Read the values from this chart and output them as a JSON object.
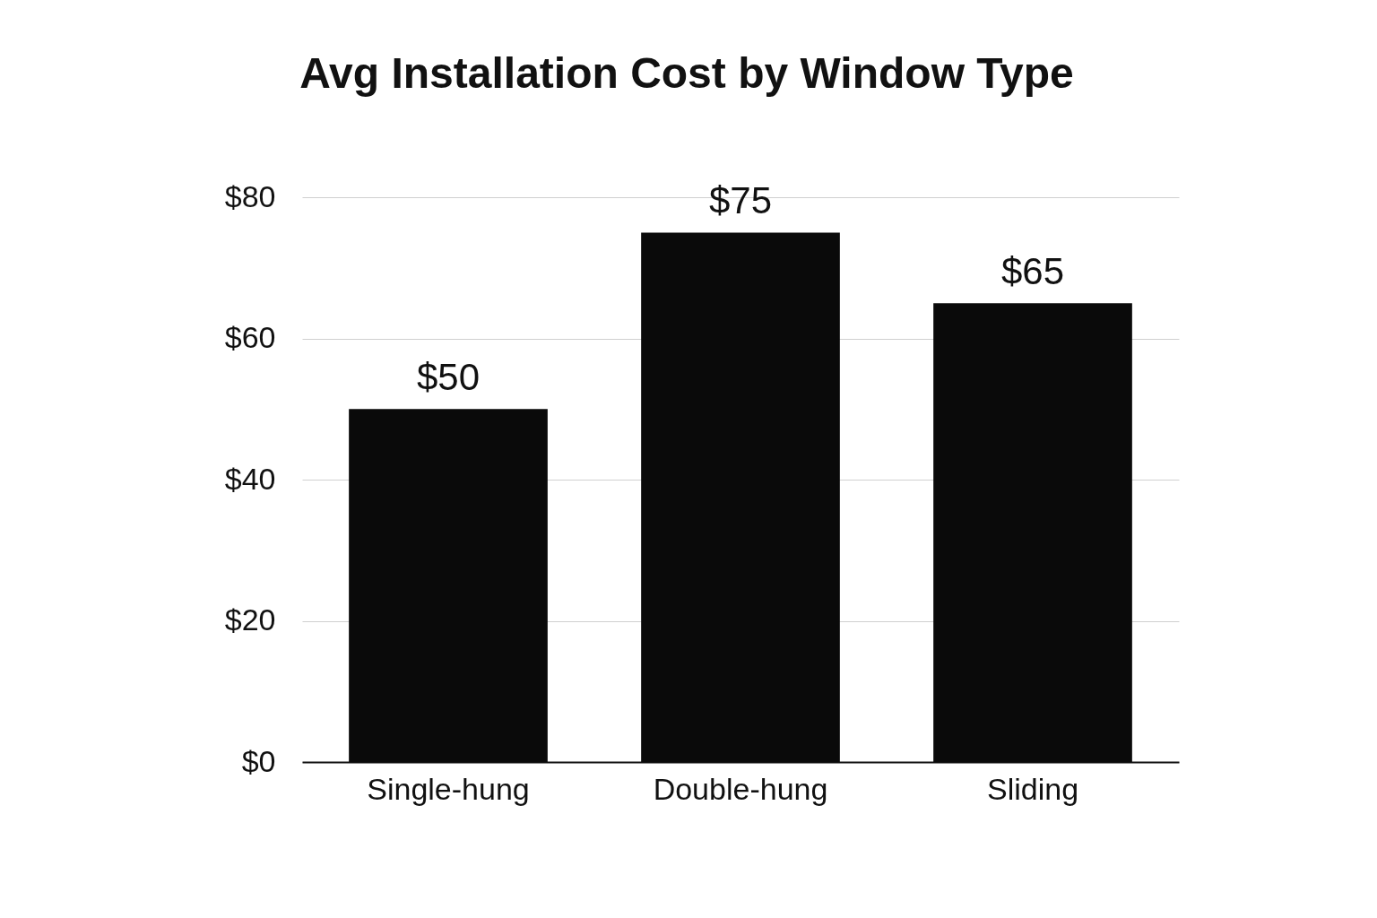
{
  "chart_data": {
    "type": "bar",
    "title": "Avg Installation Cost by Window Type",
    "categories": [
      "Single-hung",
      "Double-hung",
      "Sliding"
    ],
    "values": [
      50,
      75,
      65
    ],
    "value_labels": [
      "$50",
      "$75",
      "$65"
    ],
    "color": "#0a0a0a",
    "ylim": [
      0,
      80
    ],
    "yticks": [
      {
        "value": 0,
        "label": "$0"
      },
      {
        "value": 20,
        "label": "$20"
      },
      {
        "value": 40,
        "label": "$40"
      },
      {
        "value": 60,
        "label": "$60"
      },
      {
        "value": 80,
        "label": "$80"
      }
    ],
    "grid": "y"
  }
}
